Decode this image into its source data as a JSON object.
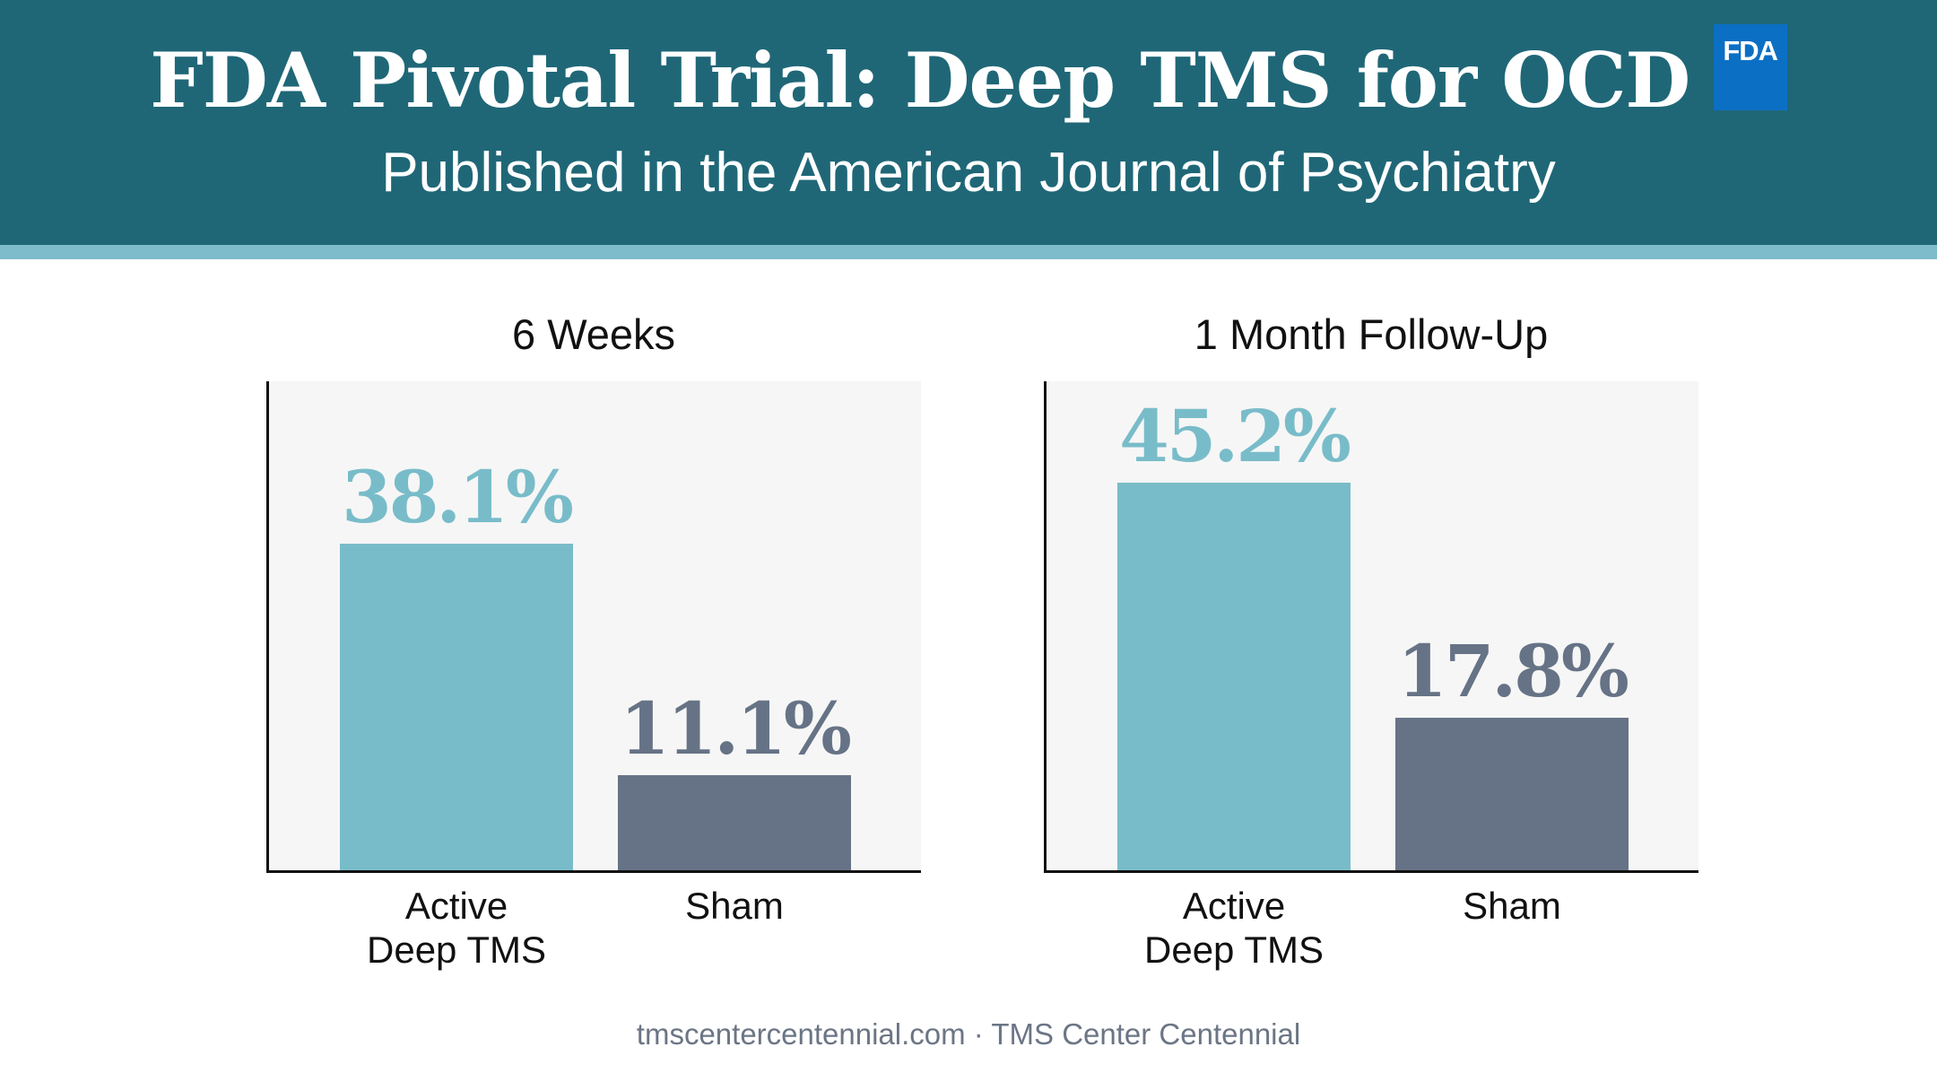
{
  "header": {
    "title": "FDA Pivotal Trial: Deep TMS for OCD",
    "subtitle": "Published in the American Journal of Psychiatry",
    "badge": "FDA"
  },
  "colors": {
    "header_bg": "#1f6777",
    "stripe": "#7fbccb",
    "active": "#79bcc9",
    "sham": "#667386",
    "badge_bg": "#0b6fc4"
  },
  "chart_data": [
    {
      "type": "bar",
      "title": "6 Weeks",
      "categories": [
        "Active\nDeep TMS",
        "Sham"
      ],
      "values": [
        38.1,
        11.1
      ],
      "value_labels": [
        "38.1%",
        "11.1%"
      ],
      "xlabel": "",
      "ylabel": "",
      "ylim": [
        0,
        57
      ],
      "grid": false
    },
    {
      "type": "bar",
      "title": "1 Month Follow-Up",
      "categories": [
        "Active\nDeep TMS",
        "Sham"
      ],
      "values": [
        45.2,
        17.8
      ],
      "value_labels": [
        "45.2%",
        "17.8%"
      ],
      "xlabel": "",
      "ylabel": "",
      "ylim": [
        0,
        57
      ],
      "grid": false
    }
  ],
  "footer": {
    "text": "tmscentercentennial.com · TMS Center Centennial"
  }
}
